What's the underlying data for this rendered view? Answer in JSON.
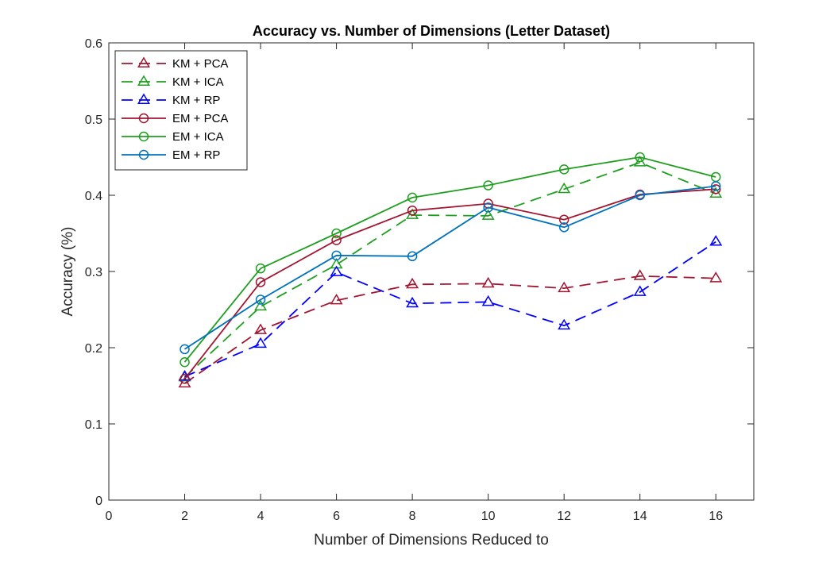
{
  "chart_data": {
    "type": "line",
    "title": "Accuracy vs. Number of Dimensions (Letter Dataset)",
    "xlabel": "Number of Dimensions Reduced to",
    "ylabel": "Accuracy (%)",
    "xlim": [
      0,
      17
    ],
    "ylim": [
      0,
      0.6
    ],
    "xticks": [
      0,
      2,
      4,
      6,
      8,
      10,
      12,
      14,
      16
    ],
    "yticks": [
      0,
      0.1,
      0.2,
      0.3,
      0.4,
      0.5,
      0.6
    ],
    "xtick_labels": [
      "0",
      "2",
      "4",
      "6",
      "8",
      "10",
      "12",
      "14",
      "16"
    ],
    "ytick_labels": [
      "0",
      "0.1",
      "0.2",
      "0.3",
      "0.4",
      "0.5",
      "0.6"
    ],
    "grid": false,
    "legend_position": "top-left",
    "x": [
      2,
      4,
      6,
      8,
      10,
      12,
      14,
      16
    ],
    "series": [
      {
        "name": "KM + PCA",
        "values": [
          0.153,
          0.223,
          0.262,
          0.283,
          0.284,
          0.278,
          0.294,
          0.291
        ],
        "color": "#A2142F",
        "marker": "triangle",
        "dash": true
      },
      {
        "name": "KM + ICA",
        "values": [
          0.161,
          0.254,
          0.309,
          0.374,
          0.373,
          0.408,
          0.443,
          0.402
        ],
        "color": "#1E9E1E",
        "marker": "triangle",
        "dash": true
      },
      {
        "name": "KM + RP",
        "values": [
          0.162,
          0.205,
          0.299,
          0.258,
          0.26,
          0.229,
          0.273,
          0.339
        ],
        "color": "#0000FF",
        "marker": "triangle",
        "dash": true
      },
      {
        "name": "EM + PCA",
        "values": [
          0.159,
          0.286,
          0.341,
          0.38,
          0.389,
          0.368,
          0.401,
          0.408
        ],
        "color": "#A2142F",
        "marker": "circle",
        "dash": false
      },
      {
        "name": "EM + ICA",
        "values": [
          0.181,
          0.304,
          0.35,
          0.397,
          0.413,
          0.434,
          0.45,
          0.424
        ],
        "color": "#1E9E1E",
        "marker": "circle",
        "dash": false
      },
      {
        "name": "EM + RP",
        "values": [
          0.198,
          0.263,
          0.321,
          0.32,
          0.384,
          0.358,
          0.4,
          0.412
        ],
        "color": "#0072BD",
        "marker": "circle",
        "dash": false
      }
    ]
  }
}
